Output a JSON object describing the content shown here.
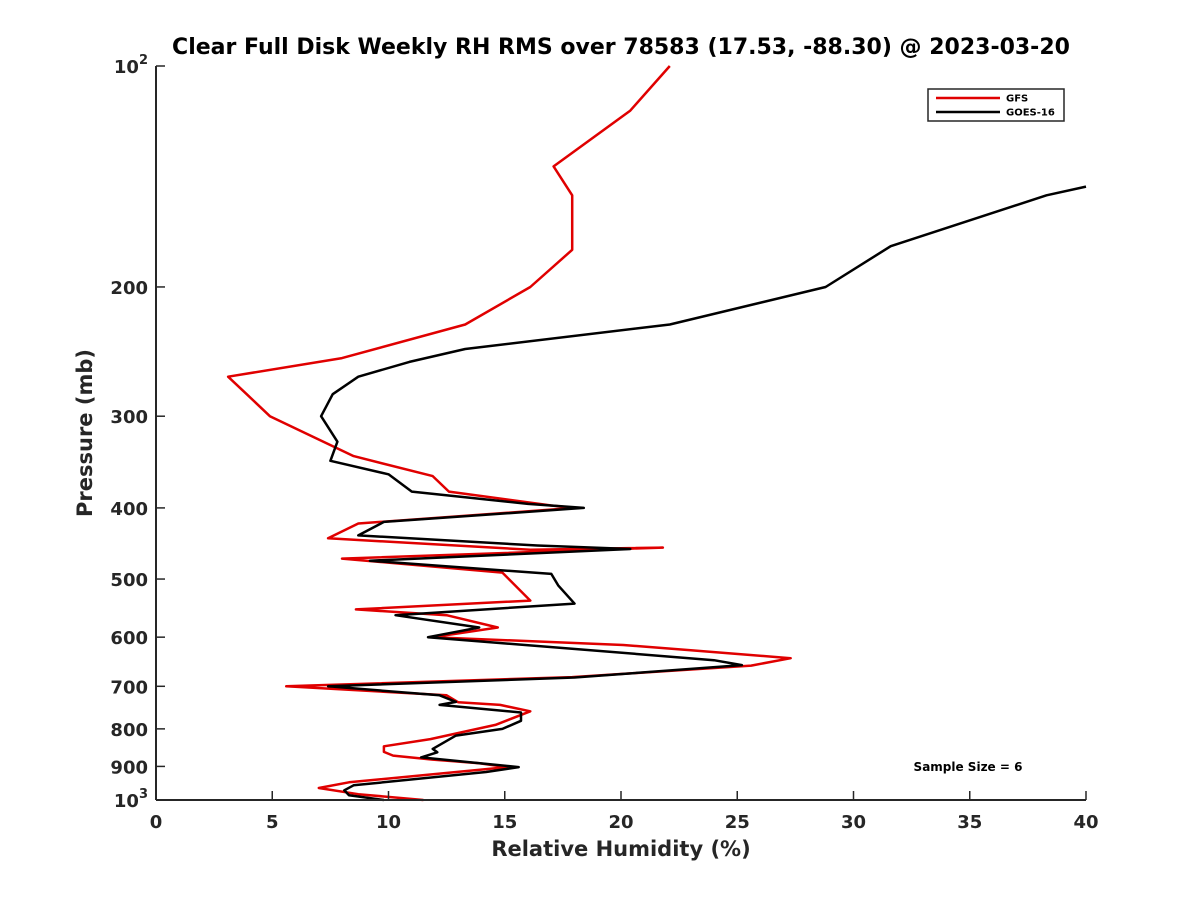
{
  "chart_data": {
    "type": "line",
    "title": "Clear Full Disk Weekly RH RMS over 78583 (17.53, -88.30) @ 2023-03-20",
    "xlabel": "Relative Humidity (%)",
    "ylabel": "Pressure (mb)",
    "xlim": [
      0,
      40
    ],
    "ylim": [
      100,
      1000
    ],
    "yscale": "log",
    "y_reversed": true,
    "grid": false,
    "legend_position": "top-right",
    "xticks": [
      0,
      5,
      10,
      15,
      20,
      25,
      30,
      35,
      40
    ],
    "yticks": [
      {
        "value": 100,
        "base": "10",
        "exp": "2"
      },
      {
        "value": 200,
        "label": "200"
      },
      {
        "value": 300,
        "label": "300"
      },
      {
        "value": 400,
        "label": "400"
      },
      {
        "value": 500,
        "label": "500"
      },
      {
        "value": 600,
        "label": "600"
      },
      {
        "value": 700,
        "label": "700"
      },
      {
        "value": 800,
        "label": "800"
      },
      {
        "value": 900,
        "label": "900"
      },
      {
        "value": 1000,
        "base": "10",
        "exp": "3"
      }
    ],
    "annotation": "Sample Size = 6",
    "series": [
      {
        "name": "GFS",
        "color": "#e00000",
        "points": [
          [
            22.1,
            100
          ],
          [
            20.4,
            115
          ],
          [
            17.1,
            137
          ],
          [
            17.9,
            150
          ],
          [
            17.9,
            162
          ],
          [
            17.9,
            178
          ],
          [
            16.1,
            200
          ],
          [
            13.3,
            225
          ],
          [
            8.0,
            250
          ],
          [
            3.1,
            265
          ],
          [
            3.9,
            280
          ],
          [
            4.9,
            300
          ],
          [
            7.2,
            325
          ],
          [
            8.5,
            340
          ],
          [
            11.9,
            362
          ],
          [
            12.6,
            380
          ],
          [
            17.0,
            397
          ],
          [
            18.0,
            400
          ],
          [
            8.7,
            420
          ],
          [
            7.4,
            440
          ],
          [
            16.1,
            456
          ],
          [
            21.8,
            453
          ],
          [
            8.0,
            469
          ],
          [
            14.9,
            490
          ],
          [
            16.1,
            535
          ],
          [
            8.6,
            550
          ],
          [
            12.5,
            560
          ],
          [
            14.7,
            582
          ],
          [
            11.9,
            600
          ],
          [
            20.1,
            615
          ],
          [
            23.0,
            625
          ],
          [
            27.3,
            641
          ],
          [
            25.6,
            656
          ],
          [
            17.9,
            680
          ],
          [
            5.6,
            700
          ],
          [
            12.5,
            720
          ],
          [
            13.0,
            736
          ],
          [
            14.8,
            742
          ],
          [
            16.1,
            757
          ],
          [
            14.6,
            790
          ],
          [
            11.8,
            826
          ],
          [
            9.8,
            845
          ],
          [
            9.8,
            860
          ],
          [
            10.2,
            870
          ],
          [
            11.9,
            881
          ],
          [
            13.9,
            891
          ],
          [
            15.1,
            902
          ],
          [
            8.3,
            946
          ],
          [
            7.0,
            963
          ],
          [
            8.7,
            982
          ],
          [
            11.5,
            1000
          ]
        ]
      },
      {
        "name": "GOES-16",
        "color": "#000000",
        "points": [
          [
            40.0,
            146
          ],
          [
            38.3,
            150
          ],
          [
            31.6,
            176
          ],
          [
            28.8,
            200
          ],
          [
            22.1,
            225
          ],
          [
            13.3,
            243
          ],
          [
            10.9,
            253
          ],
          [
            8.7,
            265
          ],
          [
            7.6,
            280
          ],
          [
            7.1,
            300
          ],
          [
            7.8,
            325
          ],
          [
            7.5,
            345
          ],
          [
            10.0,
            360
          ],
          [
            11.0,
            380
          ],
          [
            16.0,
            395
          ],
          [
            18.4,
            400
          ],
          [
            9.8,
            418
          ],
          [
            8.7,
            436
          ],
          [
            16.4,
            450
          ],
          [
            20.4,
            455
          ],
          [
            9.2,
            472
          ],
          [
            17.0,
            492
          ],
          [
            17.3,
            510
          ],
          [
            18.0,
            540
          ],
          [
            10.3,
            560
          ],
          [
            13.9,
            582
          ],
          [
            11.7,
            600
          ],
          [
            24.0,
            645
          ],
          [
            25.2,
            655
          ],
          [
            18.0,
            681
          ],
          [
            7.4,
            700
          ],
          [
            12.2,
            720
          ],
          [
            12.9,
            735
          ],
          [
            12.2,
            742
          ],
          [
            15.7,
            760
          ],
          [
            15.7,
            780
          ],
          [
            14.9,
            800
          ],
          [
            12.9,
            817
          ],
          [
            11.9,
            852
          ],
          [
            12.1,
            861
          ],
          [
            11.4,
            875
          ],
          [
            15.6,
            902
          ],
          [
            14.2,
            916
          ],
          [
            8.5,
            955
          ],
          [
            8.1,
            970
          ],
          [
            8.3,
            985
          ],
          [
            9.8,
            1000
          ]
        ]
      }
    ]
  }
}
